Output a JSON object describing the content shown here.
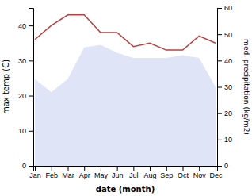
{
  "chart_data": {
    "type": "line",
    "xlabel": "date (month)",
    "ylabel": "max temp (C)",
    "y2label": "med. precipitation (kg/m2)",
    "categories": [
      "Jan",
      "Feb",
      "Mar",
      "Apr",
      "May",
      "Jun",
      "Jul",
      "Aug",
      "Sep",
      "Oct",
      "Nov",
      "Dec"
    ],
    "series": [
      {
        "type": "area",
        "axis": "y2",
        "color": "#c5cef0",
        "values": [
          33,
          28,
          33,
          45,
          46,
          43,
          41,
          41,
          41,
          42,
          41,
          30
        ]
      },
      {
        "type": "line",
        "color": "#b94040",
        "values": [
          36,
          40,
          43,
          43,
          38,
          38,
          34,
          35,
          33,
          33,
          37,
          35
        ]
      }
    ],
    "ylim": [
      0,
      45
    ],
    "yticks": [
      0,
      10,
      20,
      30,
      40
    ],
    "y2lim": [
      0,
      60
    ],
    "y2ticks": [
      0,
      10,
      20,
      30,
      40,
      50,
      60
    ]
  }
}
